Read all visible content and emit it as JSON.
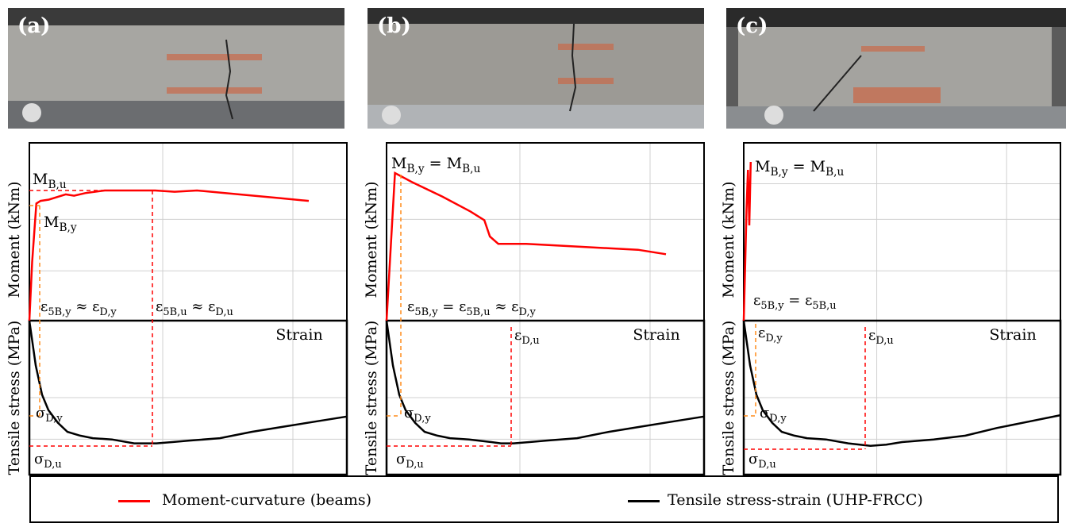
{
  "photos": [
    {
      "label": "(a)"
    },
    {
      "label": "(b)"
    },
    {
      "label": "(c)"
    }
  ],
  "legend": {
    "red_label": "Moment-curvature (beams)",
    "black_label": "Tensile stress-strain (UHP-FRCC)"
  },
  "colors": {
    "moment": "#ff0000",
    "tensile": "#000000",
    "guide_orange": "#ff8c1a",
    "guide_red": "#ff0000",
    "grid": "#d0d0d0"
  },
  "chart_data": [
    {
      "panel": "(a)",
      "type": "line",
      "ylabel_top": "Moment (kNm)",
      "ylabel_bottom": "Tensile stress (MPa)",
      "xlabel": "Strain",
      "grid": true,
      "annotations": {
        "mbu": "M_B,u",
        "mby": "M_B,y",
        "eps_y": "ε_5B,y ≈ ε_D,y",
        "eps_u": "ε_5B,u ≈ ε_D,u",
        "sig_y": "σ_D,y",
        "sig_u": "σ_D,u"
      },
      "series": [
        {
          "name": "Moment-curvature (beams)",
          "x": [
            0,
            0.01,
            0.025,
            0.04,
            0.07,
            0.1,
            0.13,
            0.16,
            0.2,
            0.27,
            0.35,
            0.45,
            0.52,
            0.6,
            0.75,
            0.9,
            1.0
          ],
          "y": [
            0,
            0.45,
            0.9,
            0.92,
            0.93,
            0.95,
            0.97,
            0.96,
            0.98,
            1.0,
            1.0,
            1.0,
            0.99,
            1.0,
            0.97,
            0.94,
            0.92
          ]
        },
        {
          "name": "Tensile stress-strain (UHP-FRCC)",
          "x": [
            0,
            0.02,
            0.04,
            0.06,
            0.09,
            0.12,
            0.16,
            0.2,
            0.26,
            0.33,
            0.4,
            0.45,
            0.5,
            0.6,
            0.7,
            0.8,
            0.9,
            1.0
          ],
          "y": [
            1.0,
            0.65,
            0.42,
            0.3,
            0.2,
            0.13,
            0.1,
            0.08,
            0.07,
            0.04,
            0.04,
            0.05,
            0.06,
            0.08,
            0.13,
            0.17,
            0.21,
            0.25
          ]
        }
      ]
    },
    {
      "panel": "(b)",
      "type": "line",
      "ylabel_top": "Moment (kNm)",
      "ylabel_bottom": "Tensile stress (MPa)",
      "xlabel": "Strain",
      "grid": true,
      "annotations": {
        "mbu": "M_B,y = M_B,u",
        "eps_y": "ε_5B,y = ε_5B,u ≈ ε_D,y",
        "eps_du": "ε_D,u",
        "sig_y": "σ_D,y",
        "sig_u": "σ_D,u"
      },
      "series": [
        {
          "name": "Moment-curvature (beams)",
          "x": [
            0,
            0.03,
            0.09,
            0.2,
            0.3,
            0.35,
            0.37,
            0.4,
            0.5,
            0.6,
            0.7,
            0.8,
            0.9,
            1.0
          ],
          "y": [
            0,
            1.0,
            0.94,
            0.84,
            0.74,
            0.68,
            0.57,
            0.52,
            0.52,
            0.51,
            0.5,
            0.49,
            0.48,
            0.45
          ]
        },
        {
          "name": "Tensile stress-strain (UHP-FRCC)",
          "x": [
            0,
            0.02,
            0.04,
            0.06,
            0.09,
            0.12,
            0.16,
            0.2,
            0.26,
            0.33,
            0.36,
            0.4,
            0.45,
            0.5,
            0.6,
            0.7,
            0.8,
            0.9,
            1.0
          ],
          "y": [
            1.0,
            0.65,
            0.42,
            0.3,
            0.2,
            0.13,
            0.1,
            0.08,
            0.07,
            0.05,
            0.04,
            0.04,
            0.05,
            0.06,
            0.08,
            0.13,
            0.17,
            0.21,
            0.25
          ]
        }
      ]
    },
    {
      "panel": "(c)",
      "type": "line",
      "ylabel_top": "Moment (kNm)",
      "ylabel_bottom": "Tensile stress (MPa)",
      "xlabel": "Strain",
      "grid": true,
      "annotations": {
        "mbu": "M_B,y = M_B,u",
        "eps_y": "ε_5B,y = ε_5B,u",
        "eps_dy": "ε_D,y",
        "eps_du": "ε_D,u",
        "sig_y": "σ_D,y",
        "sig_u": "σ_D,u"
      },
      "series": [
        {
          "name": "Moment-curvature (beams)",
          "x": [
            0,
            0.005,
            0.01,
            0.015,
            0.02,
            0.025
          ],
          "y": [
            0,
            0.35,
            0.7,
            0.95,
            0.6,
            1.0
          ]
        },
        {
          "name": "Tensile stress-strain (UHP-FRCC)",
          "x": [
            0,
            0.02,
            0.04,
            0.06,
            0.09,
            0.12,
            0.16,
            0.2,
            0.26,
            0.33,
            0.4,
            0.45,
            0.5,
            0.6,
            0.7,
            0.8,
            0.9,
            1.0
          ],
          "y": [
            1.0,
            0.65,
            0.42,
            0.3,
            0.2,
            0.13,
            0.1,
            0.08,
            0.07,
            0.04,
            0.02,
            0.03,
            0.05,
            0.07,
            0.1,
            0.16,
            0.21,
            0.26
          ]
        }
      ]
    }
  ]
}
